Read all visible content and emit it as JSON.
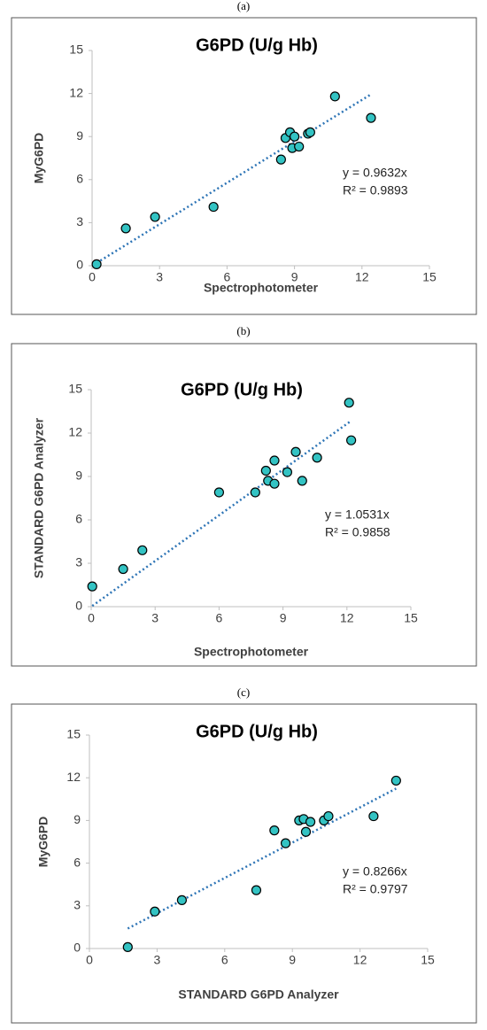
{
  "chart_data": [
    {
      "type": "scatter",
      "panel_label": "(a)",
      "title": "G6PD (U/g Hb)",
      "xlabel": "Spectrophotometer",
      "ylabel": "MyG6PD",
      "x": [
        0.2,
        1.5,
        2.8,
        5.4,
        8.4,
        8.6,
        8.8,
        8.9,
        9.0,
        9.2,
        9.6,
        9.7,
        10.8,
        12.4
      ],
      "values": [
        0.1,
        2.6,
        3.4,
        4.1,
        7.4,
        8.9,
        9.3,
        8.2,
        9.0,
        8.3,
        9.2,
        9.3,
        11.8,
        10.3
      ],
      "color": "#33c3c3",
      "trendline": {
        "slope": 0.9632,
        "color": "#2e75b6"
      },
      "equation": "y = 0.9632x",
      "r_squared": "R² = 0.9893",
      "xlim": [
        0,
        15
      ],
      "ylim": [
        0,
        15
      ],
      "xticks": [
        0,
        3,
        6,
        9,
        12,
        15
      ],
      "yticks": [
        0,
        3,
        6,
        9,
        12,
        15
      ],
      "grid": false
    },
    {
      "type": "scatter",
      "panel_label": "(b)",
      "title": "G6PD (U/g Hb)",
      "xlabel": "Spectrophotometer",
      "ylabel": "STANDARD G6PD Analyzer",
      "x": [
        0.05,
        1.5,
        2.4,
        6.0,
        7.7,
        8.2,
        8.3,
        8.6,
        8.6,
        9.2,
        9.6,
        9.9,
        10.6,
        12.1,
        12.2
      ],
      "values": [
        1.4,
        2.6,
        3.9,
        7.9,
        7.9,
        9.4,
        8.7,
        10.1,
        8.5,
        9.3,
        10.7,
        8.7,
        10.3,
        14.1,
        11.5
      ],
      "color": "#33c3c3",
      "trendline": {
        "slope": 1.0531,
        "color": "#2e75b6"
      },
      "equation": "y = 1.0531x",
      "r_squared": "R² = 0.9858",
      "xlim": [
        0,
        15
      ],
      "ylim": [
        0,
        15
      ],
      "xticks": [
        0,
        3,
        6,
        9,
        12,
        15
      ],
      "yticks": [
        0,
        3,
        6,
        9,
        12,
        15
      ],
      "grid": false
    },
    {
      "type": "scatter",
      "panel_label": "(c)",
      "title": "G6PD (U/g Hb)",
      "xlabel": "STANDARD G6PD Analyzer",
      "ylabel": "MyG6PD",
      "x": [
        1.7,
        2.9,
        4.1,
        7.4,
        8.2,
        8.7,
        9.3,
        9.5,
        9.6,
        9.8,
        10.4,
        10.6,
        12.6,
        13.6
      ],
      "values": [
        0.1,
        2.6,
        3.4,
        4.1,
        8.3,
        7.4,
        9.0,
        9.1,
        8.2,
        8.9,
        9.0,
        9.3,
        9.3,
        11.8
      ],
      "color": "#33c3c3",
      "trendline": {
        "slope": 0.8266,
        "color": "#2e75b6"
      },
      "equation": "y = 0.8266x",
      "r_squared": "R² = 0.9797",
      "xlim": [
        0,
        15
      ],
      "ylim": [
        0,
        15
      ],
      "xticks": [
        0,
        3,
        6,
        9,
        12,
        15
      ],
      "yticks": [
        0,
        3,
        6,
        9,
        12,
        15
      ],
      "grid": false
    }
  ]
}
